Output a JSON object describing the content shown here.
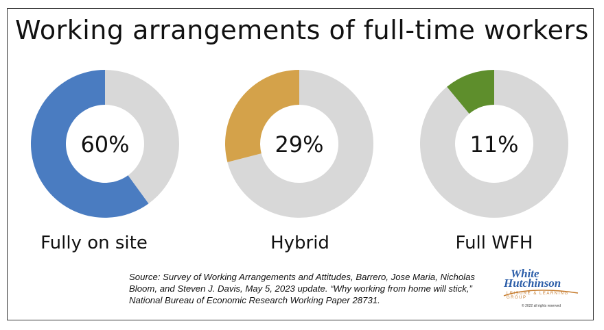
{
  "chart_data": {
    "type": "pie",
    "title": "Working arrangements of full-time workers",
    "categories": [
      "Fully on site",
      "Hybrid",
      "Full WFH"
    ],
    "values": [
      60,
      29,
      11
    ],
    "value_labels": [
      "60%",
      "29%",
      "11%"
    ],
    "colors": [
      "#4a7cc1",
      "#d4a24a",
      "#5e8e2c"
    ],
    "remainder_color": "#d8d8d8"
  },
  "source": "Source: Survey of Working Arrangements and Attitudes, Barrero, Jose Maria, Nicholas Bloom, and Steven J. Davis, May 5, 2023 update. “Why working from home will stick,” National Bureau of Economic Research Working Paper 28731.",
  "logo": {
    "line1": "White",
    "line2": "Hutchinson",
    "line3": "LEISURE & LEARNING GROUP",
    "copyright": "© 2022 all rights reserved"
  }
}
